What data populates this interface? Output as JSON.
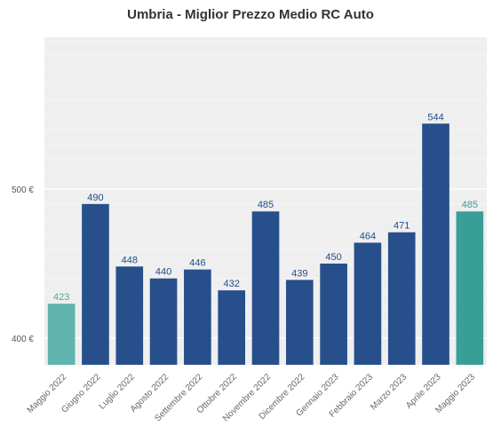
{
  "chart_data": {
    "type": "bar",
    "title": "Umbria - Miglior Prezzo Medio RC Auto",
    "categories": [
      "Maggio 2022",
      "Giugno 2022",
      "Luglio 2022",
      "Agosto 2022",
      "Settembre 2022",
      "Ottobre 2022",
      "Novembre 2022",
      "Dicembre 2022",
      "Gennaio 2023",
      "Febbraio 2023",
      "Marzo 2023",
      "Aprile 2023",
      "Maggio 2023"
    ],
    "values": [
      423,
      490,
      448,
      440,
      446,
      432,
      485,
      439,
      450,
      464,
      471,
      544,
      485
    ],
    "value_labels": [
      "423",
      "490",
      "448",
      "440",
      "446",
      "432",
      "485",
      "439",
      "450",
      "464",
      "471",
      "544",
      "485"
    ],
    "y_ticks": [
      {
        "value": 400,
        "label": "400 €"
      },
      {
        "value": 500,
        "label": "500 €"
      }
    ],
    "ylim": [
      382,
      602
    ],
    "xlabel": "",
    "ylabel": "",
    "grid": true,
    "colors": {
      "background": "#efefef",
      "grid": "#ffffff",
      "bar_default": "#274f8c",
      "label_default": "#1f4e8c",
      "highlight": {
        "0": {
          "bar": "#61b3ad",
          "label": "#4fa7a1"
        },
        "12": {
          "bar": "#3a9e98",
          "label": "#3a9e98"
        }
      }
    }
  }
}
